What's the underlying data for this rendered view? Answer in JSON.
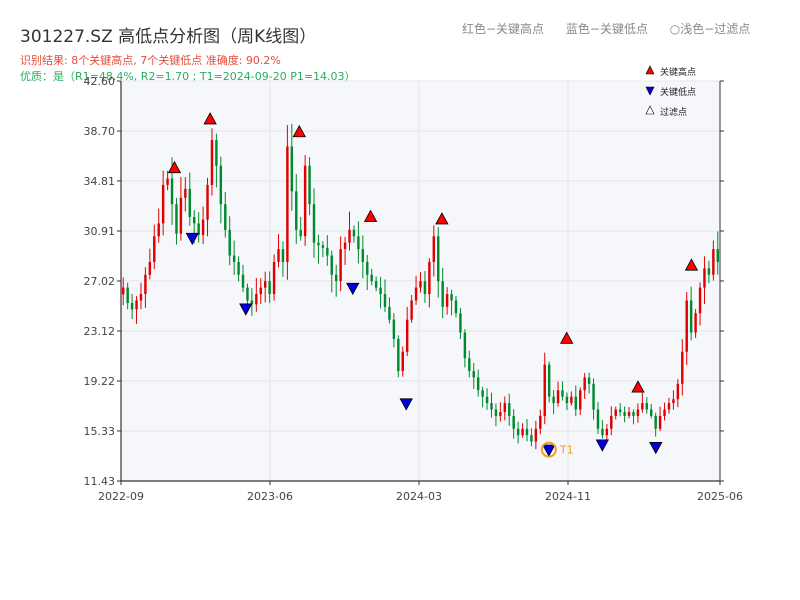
{
  "header": {
    "title": "301227.SZ 高低点分析图（周K线图）",
    "top_legend": [
      "红色−关键高点",
      "蓝色−关键低点",
      "○浅色−过滤点"
    ],
    "result_line": "识别结果: 8个关键高点, 7个关键低点  准确度: 90.2%",
    "quality_line": "优质：是（R1=48.4%, R2=1.70 ; T1=2024-09-20 P1=14.03）"
  },
  "colors": {
    "up": "#e00000",
    "down": "#008a30",
    "high_marker": "#ff0000",
    "low_marker": "#0000dd",
    "target": "#f0a020",
    "plot_bg": "#f5f7fa",
    "grid": "#e3e6ea",
    "axis": "#333333"
  },
  "chart_data": {
    "type": "candlestick",
    "ylim": [
      11.43,
      42.6
    ],
    "y_ticks": [
      "42.60",
      "38.70",
      "34.81",
      "30.91",
      "27.02",
      "23.12",
      "19.22",
      "15.33",
      "11.43"
    ],
    "x_ticks": [
      "2022-09",
      "2023-06",
      "2024-03",
      "2024-11",
      "2025-06"
    ],
    "legend": [
      "关键高点",
      "关键低点",
      "过滤点"
    ],
    "annotation": {
      "label": "T1",
      "date": "2024-09-20",
      "price": 14.03
    },
    "key_highs": [
      {
        "date": "2022-12",
        "price": 35.3
      },
      {
        "date": "2023-02",
        "price": 39.1
      },
      {
        "date": "2023-07",
        "price": 38.1
      },
      {
        "date": "2023-11",
        "price": 31.5
      },
      {
        "date": "2024-03",
        "price": 31.3
      },
      {
        "date": "2024-10",
        "price": 22.0
      },
      {
        "date": "2025-02",
        "price": 18.2
      },
      {
        "date": "2025-05",
        "price": 27.7
      }
    ],
    "key_lows": [
      {
        "date": "2023-01",
        "price": 30.5
      },
      {
        "date": "2023-04",
        "price": 25.0
      },
      {
        "date": "2023-10",
        "price": 26.6
      },
      {
        "date": "2024-01",
        "price": 17.6
      },
      {
        "date": "2024-09",
        "price": 14.0
      },
      {
        "date": "2024-12",
        "price": 14.4
      },
      {
        "date": "2025-03",
        "price": 14.2
      }
    ],
    "price_path": [
      26.5,
      25.3,
      24.8,
      25.5,
      26.0,
      27.5,
      28.5,
      30.5,
      31.5,
      34.5,
      35.0,
      33.0,
      30.7,
      33.5,
      34.2,
      32.0,
      31.5,
      30.6,
      31.8,
      34.5,
      38.0,
      36.0,
      33.0,
      31.0,
      29.0,
      28.5,
      27.5,
      26.5,
      25.5,
      25.2,
      26.0,
      26.5,
      27.0,
      26.0,
      28.5,
      29.5,
      28.5,
      37.5,
      34.0,
      31.0,
      30.5,
      36.0,
      33.0,
      30.0,
      29.8,
      29.6,
      29.0,
      27.5,
      27.0,
      29.5,
      30.0,
      31.0,
      30.5,
      29.5,
      28.5,
      27.5,
      27.0,
      26.5,
      26.0,
      25.0,
      24.0,
      22.5,
      20.0,
      21.5,
      24.0,
      25.5,
      26.5,
      27.0,
      26.0,
      28.5,
      30.5,
      27.0,
      25.0,
      26.0,
      25.5,
      24.5,
      23.0,
      21.0,
      20.0,
      19.5,
      18.5,
      18.0,
      17.5,
      17.0,
      16.5,
      16.8,
      17.5,
      16.5,
      15.5,
      15.0,
      15.5,
      15.0,
      14.5,
      15.5,
      16.5,
      20.5,
      18.0,
      17.5,
      18.5,
      18.0,
      17.5,
      18.0,
      17.0,
      18.5,
      19.5,
      19.0,
      17.0,
      15.5,
      15.0,
      15.5,
      16.5,
      17.0,
      16.8,
      16.5,
      16.8,
      16.5,
      17.0,
      17.5,
      17.0,
      16.5,
      15.5,
      16.5,
      17.0,
      17.5,
      17.8,
      19.0,
      21.5,
      25.5,
      23.0,
      24.5,
      26.5,
      28.0,
      27.5,
      29.5,
      28.5
    ]
  }
}
